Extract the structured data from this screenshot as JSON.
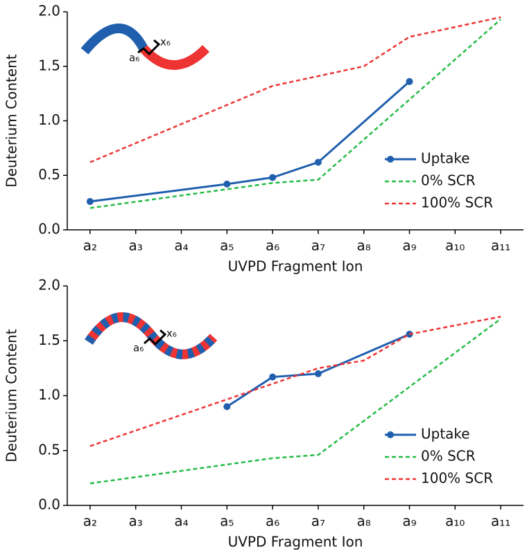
{
  "chart_data": [
    {
      "type": "line",
      "y_label": "Deuterium Content",
      "x_label": "UVPD Fragment Ion",
      "annotations": [
        "a₆",
        "x₆"
      ],
      "xlim": [
        1.5,
        11.5
      ],
      "xticks": [
        {
          "value": 2,
          "label": "a₂"
        },
        {
          "value": 3,
          "label": "a₃"
        },
        {
          "value": 4,
          "label": "a₄"
        },
        {
          "value": 5,
          "label": "a₅"
        },
        {
          "value": 6,
          "label": "a₆"
        },
        {
          "value": 7,
          "label": "a₇"
        },
        {
          "value": 8,
          "label": "a₈"
        },
        {
          "value": 9,
          "label": "a₉"
        },
        {
          "value": 10,
          "label": "a₁₀"
        },
        {
          "value": 11,
          "label": "a₁₁"
        }
      ],
      "ylim": [
        0,
        2.0
      ],
      "yticks": [
        {
          "value": 0,
          "label": "0.0"
        },
        0.5,
        {
          "value": 1,
          "label": "1.0"
        },
        1.5,
        {
          "value": 2,
          "label": "2.0"
        }
      ],
      "legend": "lower right",
      "series": [
        {
          "name": "Uptake",
          "color": "#1f5fae",
          "linestyle": "solid",
          "marker": "o",
          "x": [
            2,
            5,
            6,
            7,
            9
          ],
          "values": [
            0.26,
            0.42,
            0.48,
            0.62,
            1.36
          ]
        },
        {
          "name": "0% SCR",
          "color": "#22bb44",
          "linestyle": "dashed",
          "x": [
            2,
            6,
            7,
            11
          ],
          "values": [
            0.2,
            0.43,
            0.46,
            1.93
          ]
        },
        {
          "name": "100% SCR",
          "color": "#ee3333",
          "linestyle": "dashed",
          "x": [
            2,
            6,
            8,
            9,
            11
          ],
          "values": [
            0.62,
            1.32,
            1.5,
            1.77,
            1.95
          ]
        }
      ]
    },
    {
      "type": "line",
      "y_label": "Deuterium Content",
      "x_label": "UVPD Fragment Ion",
      "annotations": [
        "a₆",
        "x₆"
      ],
      "xlim": [
        1.5,
        11.5
      ],
      "xticks": [
        {
          "value": 2,
          "label": "a₂"
        },
        {
          "value": 3,
          "label": "a₃"
        },
        {
          "value": 4,
          "label": "a₄"
        },
        {
          "value": 5,
          "label": "a₅"
        },
        {
          "value": 6,
          "label": "a₆"
        },
        {
          "value": 7,
          "label": "a₇"
        },
        {
          "value": 8,
          "label": "a₈"
        },
        {
          "value": 9,
          "label": "a₉"
        },
        {
          "value": 10,
          "label": "a₁₀"
        },
        {
          "value": 11,
          "label": "a₁₁"
        }
      ],
      "ylim": [
        0,
        2.0
      ],
      "yticks": [
        {
          "value": 0,
          "label": "0.0"
        },
        0.5,
        {
          "value": 1,
          "label": "1.0"
        },
        1.5,
        {
          "value": 2,
          "label": "2.0"
        }
      ],
      "legend": "lower right",
      "series": [
        {
          "name": "Uptake",
          "color": "#1f5fae",
          "linestyle": "solid",
          "marker": "o",
          "x": [
            5,
            6,
            7,
            9
          ],
          "values": [
            0.9,
            1.17,
            1.2,
            1.56
          ]
        },
        {
          "name": "0% SCR",
          "color": "#22bb44",
          "linestyle": "dashed",
          "x": [
            2,
            6,
            7,
            11
          ],
          "values": [
            0.2,
            0.43,
            0.46,
            1.7
          ]
        },
        {
          "name": "100% SCR",
          "color": "#ee3333",
          "linestyle": "dashed",
          "x": [
            2,
            7,
            8,
            9,
            11
          ],
          "values": [
            0.54,
            1.25,
            1.32,
            1.56,
            1.72
          ]
        }
      ]
    }
  ]
}
